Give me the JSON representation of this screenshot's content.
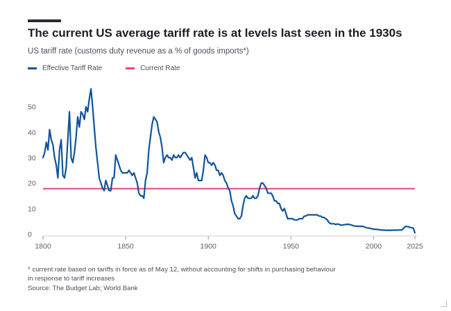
{
  "header": {
    "title": "The current US average tariff rate is at levels last seen in the 1930s",
    "subtitle": "US tariff rate (customs duty revenue as a % of goods imports*)"
  },
  "legend": {
    "items": [
      {
        "label": "Effective Tariff Rate",
        "color": "#0f5499"
      },
      {
        "label": "Current Rate",
        "color": "#e1477d"
      }
    ]
  },
  "footer": {
    "footnote_line1": "* current rate based on tariffs in force as of May 12, without accounting for shifts in purchasing behaviour",
    "footnote_line2": "in response to tariff increases",
    "source": "Source: The Budget Lab; World Bank"
  },
  "chart_data": {
    "type": "line",
    "xlim": [
      1800,
      2025
    ],
    "ylim": [
      0,
      57
    ],
    "x_ticks": [
      1800,
      1850,
      1900,
      1950,
      2000,
      2025
    ],
    "y_ticks": [
      0,
      10,
      20,
      30,
      40,
      50
    ],
    "grid": false,
    "legend_position": "top-left",
    "series": [
      {
        "name": "Effective Tariff Rate",
        "color": "#0f5499",
        "points": [
          [
            1800,
            30
          ],
          [
            1801,
            32
          ],
          [
            1802,
            36
          ],
          [
            1803,
            33
          ],
          [
            1804,
            41
          ],
          [
            1805,
            37
          ],
          [
            1806,
            35
          ],
          [
            1807,
            30
          ],
          [
            1808,
            27
          ],
          [
            1809,
            22
          ],
          [
            1810,
            33
          ],
          [
            1811,
            37
          ],
          [
            1812,
            23
          ],
          [
            1813,
            22
          ],
          [
            1814,
            26
          ],
          [
            1815,
            37
          ],
          [
            1816,
            48
          ],
          [
            1817,
            30
          ],
          [
            1818,
            28
          ],
          [
            1819,
            32
          ],
          [
            1820,
            38
          ],
          [
            1821,
            46
          ],
          [
            1822,
            42
          ],
          [
            1823,
            48
          ],
          [
            1824,
            47
          ],
          [
            1825,
            45
          ],
          [
            1826,
            50
          ],
          [
            1827,
            48
          ],
          [
            1828,
            53
          ],
          [
            1829,
            57
          ],
          [
            1830,
            50
          ],
          [
            1831,
            42
          ],
          [
            1832,
            34
          ],
          [
            1833,
            28
          ],
          [
            1834,
            22
          ],
          [
            1835,
            20
          ],
          [
            1836,
            18
          ],
          [
            1837,
            17
          ],
          [
            1838,
            21
          ],
          [
            1839,
            19
          ],
          [
            1840,
            17
          ],
          [
            1841,
            17
          ],
          [
            1842,
            22
          ],
          [
            1843,
            22
          ],
          [
            1844,
            31
          ],
          [
            1845,
            29
          ],
          [
            1846,
            27
          ],
          [
            1847,
            25
          ],
          [
            1848,
            24
          ],
          [
            1849,
            24
          ],
          [
            1850,
            24
          ],
          [
            1851,
            24
          ],
          [
            1852,
            25
          ],
          [
            1853,
            24
          ],
          [
            1854,
            23
          ],
          [
            1855,
            24
          ],
          [
            1856,
            22
          ],
          [
            1857,
            20
          ],
          [
            1858,
            16
          ],
          [
            1859,
            15
          ],
          [
            1860,
            15
          ],
          [
            1861,
            14
          ],
          [
            1862,
            21
          ],
          [
            1863,
            24
          ],
          [
            1864,
            33
          ],
          [
            1865,
            38
          ],
          [
            1866,
            43
          ],
          [
            1867,
            46
          ],
          [
            1868,
            45
          ],
          [
            1869,
            44
          ],
          [
            1870,
            40
          ],
          [
            1871,
            38
          ],
          [
            1872,
            34
          ],
          [
            1873,
            28
          ],
          [
            1874,
            30
          ],
          [
            1875,
            31
          ],
          [
            1876,
            30
          ],
          [
            1877,
            30
          ],
          [
            1878,
            29
          ],
          [
            1879,
            31
          ],
          [
            1880,
            30
          ],
          [
            1881,
            30
          ],
          [
            1882,
            31
          ],
          [
            1883,
            30
          ],
          [
            1884,
            31
          ],
          [
            1885,
            32
          ],
          [
            1886,
            32
          ],
          [
            1887,
            31
          ],
          [
            1888,
            30
          ],
          [
            1889,
            29
          ],
          [
            1890,
            30
          ],
          [
            1891,
            26
          ],
          [
            1892,
            22
          ],
          [
            1893,
            24
          ],
          [
            1894,
            21
          ],
          [
            1895,
            21
          ],
          [
            1896,
            21
          ],
          [
            1897,
            25
          ],
          [
            1898,
            31
          ],
          [
            1899,
            30
          ],
          [
            1900,
            28
          ],
          [
            1901,
            28
          ],
          [
            1902,
            27
          ],
          [
            1903,
            28
          ],
          [
            1904,
            27
          ],
          [
            1905,
            25
          ],
          [
            1906,
            25
          ],
          [
            1907,
            23
          ],
          [
            1908,
            24
          ],
          [
            1909,
            23
          ],
          [
            1910,
            21
          ],
          [
            1911,
            20
          ],
          [
            1912,
            18
          ],
          [
            1913,
            17
          ],
          [
            1914,
            13
          ],
          [
            1915,
            11
          ],
          [
            1916,
            8
          ],
          [
            1917,
            7
          ],
          [
            1918,
            6
          ],
          [
            1919,
            6
          ],
          [
            1920,
            7
          ],
          [
            1921,
            11
          ],
          [
            1922,
            14
          ],
          [
            1923,
            15
          ],
          [
            1924,
            14
          ],
          [
            1925,
            14
          ],
          [
            1926,
            14
          ],
          [
            1927,
            15
          ],
          [
            1928,
            14
          ],
          [
            1929,
            14
          ],
          [
            1930,
            15
          ],
          [
            1931,
            18
          ],
          [
            1932,
            20
          ],
          [
            1933,
            20
          ],
          [
            1934,
            19
          ],
          [
            1935,
            18
          ],
          [
            1936,
            16
          ],
          [
            1937,
            16
          ],
          [
            1938,
            16
          ],
          [
            1939,
            15
          ],
          [
            1940,
            13
          ],
          [
            1941,
            13
          ],
          [
            1942,
            12
          ],
          [
            1943,
            12
          ],
          [
            1944,
            10
          ],
          [
            1945,
            9
          ],
          [
            1946,
            10
          ],
          [
            1947,
            8
          ],
          [
            1948,
            6
          ],
          [
            1949,
            6
          ],
          [
            1950,
            6
          ],
          [
            1951,
            6
          ],
          [
            1952,
            5.5
          ],
          [
            1953,
            5.5
          ],
          [
            1954,
            5.5
          ],
          [
            1955,
            6
          ],
          [
            1956,
            6
          ],
          [
            1957,
            6
          ],
          [
            1958,
            7
          ],
          [
            1959,
            7
          ],
          [
            1960,
            7.5
          ],
          [
            1961,
            7.5
          ],
          [
            1962,
            7.5
          ],
          [
            1963,
            7.5
          ],
          [
            1964,
            7.5
          ],
          [
            1965,
            7.5
          ],
          [
            1966,
            7.5
          ],
          [
            1967,
            7
          ],
          [
            1968,
            7
          ],
          [
            1969,
            6.5
          ],
          [
            1970,
            6.5
          ],
          [
            1971,
            6
          ],
          [
            1972,
            5.5
          ],
          [
            1973,
            4.5
          ],
          [
            1974,
            4
          ],
          [
            1975,
            4
          ],
          [
            1976,
            4
          ],
          [
            1977,
            3.7
          ],
          [
            1978,
            3.9
          ],
          [
            1979,
            3.8
          ],
          [
            1980,
            3.5
          ],
          [
            1981,
            3.5
          ],
          [
            1982,
            3.6
          ],
          [
            1983,
            3.7
          ],
          [
            1984,
            3.8
          ],
          [
            1985,
            3.8
          ],
          [
            1986,
            3.6
          ],
          [
            1987,
            3.4
          ],
          [
            1988,
            3.2
          ],
          [
            1989,
            3.1
          ],
          [
            1990,
            3
          ],
          [
            1991,
            3
          ],
          [
            1992,
            3
          ],
          [
            1993,
            3
          ],
          [
            1994,
            2.9
          ],
          [
            1995,
            2.6
          ],
          [
            1996,
            2.4
          ],
          [
            1997,
            2.3
          ],
          [
            1998,
            2.2
          ],
          [
            1999,
            2
          ],
          [
            2000,
            1.9
          ],
          [
            2001,
            1.8
          ],
          [
            2002,
            1.8
          ],
          [
            2003,
            1.7
          ],
          [
            2004,
            1.6
          ],
          [
            2005,
            1.5
          ],
          [
            2006,
            1.5
          ],
          [
            2007,
            1.5
          ],
          [
            2008,
            1.4
          ],
          [
            2009,
            1.5
          ],
          [
            2010,
            1.4
          ],
          [
            2011,
            1.5
          ],
          [
            2012,
            1.5
          ],
          [
            2013,
            1.5
          ],
          [
            2014,
            1.5
          ],
          [
            2015,
            1.5
          ],
          [
            2016,
            1.6
          ],
          [
            2017,
            1.5
          ],
          [
            2018,
            2.1
          ],
          [
            2019,
            2.9
          ],
          [
            2020,
            2.9
          ],
          [
            2021,
            2.9
          ],
          [
            2022,
            2.5
          ],
          [
            2023,
            2.5
          ],
          [
            2024,
            2.3
          ],
          [
            2025,
            0.5
          ]
        ]
      },
      {
        "name": "Current Rate",
        "color": "#e1477d",
        "points": [
          [
            1800,
            17.8
          ],
          [
            2025,
            17.8
          ]
        ]
      }
    ]
  }
}
